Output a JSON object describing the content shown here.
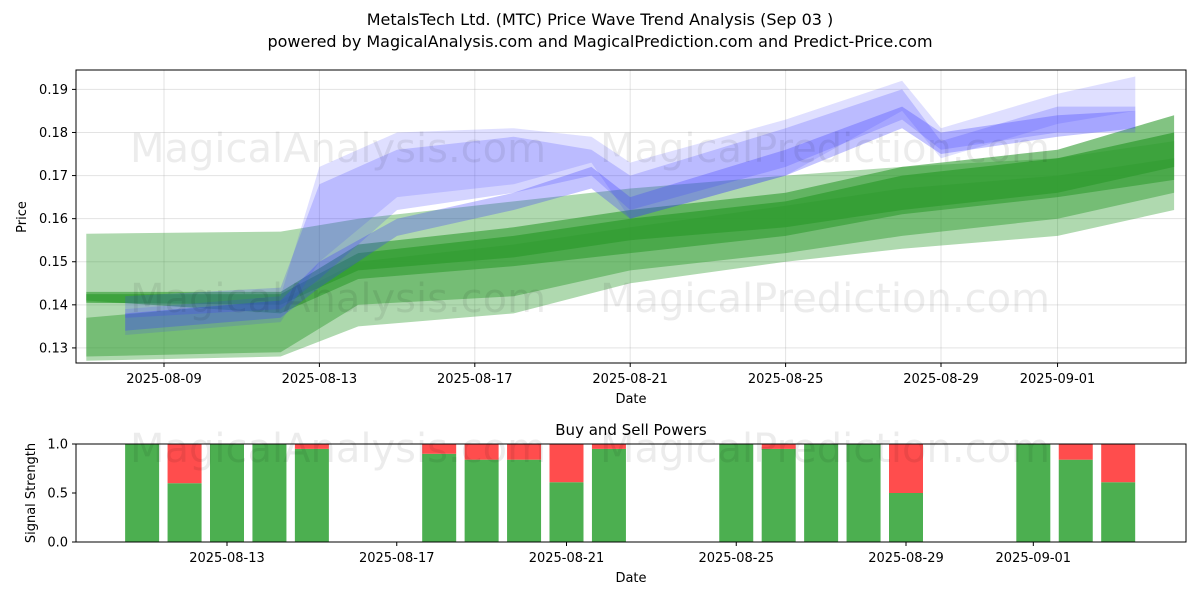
{
  "title_line1": "MetalsTech Ltd. (MTC) Price Wave Trend Analysis (Sep 03 )",
  "title_line2": "powered by MagicalAnalysis.com and MagicalPrediction.com and Predict-Price.com",
  "watermarks": [
    "MagicalAnalysis.com",
    "MagicalPrediction.com",
    "MagicalAnalysis.com",
    "MagicalPrediction.com",
    "MagicalAnalysis.com",
    "MagicalPrediction.com"
  ],
  "colors": {
    "green": "#4caf50",
    "red": "#ff4d4d",
    "blue": "#3a3aff",
    "band": "#2e9b2e"
  },
  "chart_data": [
    {
      "type": "area",
      "title": "",
      "xlabel": "Date",
      "ylabel": "Price",
      "x_ticks": [
        "2025-08-09",
        "2025-08-13",
        "2025-08-17",
        "2025-08-21",
        "2025-08-25",
        "2025-08-29",
        "2025-09-01"
      ],
      "y_ticks": [
        "0.13",
        "0.14",
        "0.15",
        "0.16",
        "0.17",
        "0.18",
        "0.19"
      ],
      "ylim": [
        0.1265,
        0.1945
      ],
      "green_bands": [
        {
          "dates": [
            "2025-08-07",
            "2025-08-12",
            "2025-08-14",
            "2025-08-18",
            "2025-08-21",
            "2025-08-25",
            "2025-08-28",
            "2025-09-01",
            "2025-09-04"
          ],
          "upper": [
            0.1565,
            0.157,
            0.16,
            0.164,
            0.167,
            0.17,
            0.172,
            0.174,
            0.178
          ],
          "lower": [
            0.127,
            0.128,
            0.135,
            0.138,
            0.145,
            0.15,
            0.153,
            0.156,
            0.162
          ]
        },
        {
          "dates": [
            "2025-08-07",
            "2025-08-12",
            "2025-08-14",
            "2025-08-18",
            "2025-08-21",
            "2025-08-25",
            "2025-08-28",
            "2025-09-01",
            "2025-09-04"
          ],
          "upper": [
            0.137,
            0.141,
            0.15,
            0.154,
            0.158,
            0.163,
            0.167,
            0.17,
            0.174
          ],
          "lower": [
            0.128,
            0.129,
            0.14,
            0.142,
            0.148,
            0.152,
            0.156,
            0.16,
            0.166
          ]
        },
        {
          "dates": [
            "2025-08-07",
            "2025-08-12",
            "2025-08-14",
            "2025-08-18",
            "2025-08-21",
            "2025-08-25",
            "2025-08-28",
            "2025-09-01",
            "2025-09-04"
          ],
          "upper": [
            0.143,
            0.143,
            0.154,
            0.158,
            0.162,
            0.166,
            0.172,
            0.176,
            0.184
          ],
          "lower": [
            0.141,
            0.138,
            0.146,
            0.149,
            0.152,
            0.156,
            0.161,
            0.165,
            0.169
          ]
        },
        {
          "dates": [
            "2025-08-07",
            "2025-08-12",
            "2025-08-14",
            "2025-08-18",
            "2025-08-21",
            "2025-08-25",
            "2025-08-28",
            "2025-09-01",
            "2025-09-04"
          ],
          "upper": [
            0.1425,
            0.1425,
            0.152,
            0.156,
            0.16,
            0.164,
            0.17,
            0.174,
            0.18
          ],
          "lower": [
            0.1405,
            0.14,
            0.148,
            0.151,
            0.155,
            0.158,
            0.162,
            0.166,
            0.172
          ]
        }
      ],
      "blue_bands": [
        {
          "dates": [
            "2025-08-08",
            "2025-08-12",
            "2025-08-13",
            "2025-08-15",
            "2025-08-18",
            "2025-08-20",
            "2025-08-21",
            "2025-08-25",
            "2025-08-28",
            "2025-08-29",
            "2025-09-01",
            "2025-09-03"
          ],
          "upper": [
            0.139,
            0.142,
            0.172,
            0.18,
            0.181,
            0.179,
            0.173,
            0.183,
            0.192,
            0.181,
            0.189,
            0.193
          ],
          "lower": [
            0.133,
            0.136,
            0.15,
            0.165,
            0.168,
            0.173,
            0.16,
            0.17,
            0.185,
            0.174,
            0.182,
            0.185
          ]
        },
        {
          "dates": [
            "2025-08-08",
            "2025-08-12",
            "2025-08-13",
            "2025-08-15",
            "2025-08-18",
            "2025-08-20",
            "2025-08-21",
            "2025-08-25",
            "2025-08-28",
            "2025-08-29",
            "2025-09-01",
            "2025-09-03"
          ],
          "upper": [
            0.142,
            0.144,
            0.168,
            0.176,
            0.179,
            0.176,
            0.17,
            0.181,
            0.19,
            0.178,
            0.186,
            0.186
          ],
          "lower": [
            0.137,
            0.139,
            0.146,
            0.162,
            0.166,
            0.17,
            0.162,
            0.172,
            0.183,
            0.176,
            0.18,
            0.18
          ]
        },
        {
          "dates": [
            "2025-08-08",
            "2025-08-12",
            "2025-08-13",
            "2025-08-15",
            "2025-08-18",
            "2025-08-20",
            "2025-08-21",
            "2025-08-25",
            "2025-08-28",
            "2025-08-29",
            "2025-09-01",
            "2025-09-03"
          ],
          "upper": [
            0.138,
            0.141,
            0.15,
            0.16,
            0.166,
            0.172,
            0.165,
            0.176,
            0.186,
            0.18,
            0.184,
            0.185
          ],
          "lower": [
            0.134,
            0.137,
            0.144,
            0.156,
            0.162,
            0.167,
            0.16,
            0.17,
            0.181,
            0.175,
            0.179,
            0.181
          ]
        }
      ]
    },
    {
      "type": "bar",
      "title": "Buy and Sell Powers",
      "xlabel": "Date",
      "ylabel": "Signal Strength",
      "ylim": [
        0,
        1.0
      ],
      "y_ticks": [
        "0.0",
        "0.5",
        "1.0"
      ],
      "x_ticks": [
        "2025-08-13",
        "2025-08-17",
        "2025-08-21",
        "2025-08-25",
        "2025-08-29",
        "2025-09-01"
      ],
      "categories": [
        "2025-08-11",
        "2025-08-12",
        "2025-08-13",
        "2025-08-14",
        "2025-08-15",
        "2025-08-18",
        "2025-08-19",
        "2025-08-20",
        "2025-08-21",
        "2025-08-22",
        "2025-08-25",
        "2025-08-26",
        "2025-08-27",
        "2025-08-28",
        "2025-08-29",
        "2025-09-01",
        "2025-09-02",
        "2025-09-03"
      ],
      "series": [
        {
          "name": "Buy",
          "values": [
            1.0,
            0.6,
            1.0,
            1.0,
            0.95,
            0.9,
            0.84,
            0.84,
            0.61,
            0.95,
            1.0,
            0.95,
            1.0,
            1.0,
            0.5,
            1.0,
            0.84,
            0.61
          ]
        },
        {
          "name": "Sell",
          "values": [
            0.0,
            0.4,
            0.0,
            0.0,
            0.05,
            0.1,
            0.16,
            0.16,
            0.39,
            0.05,
            0.0,
            0.05,
            0.0,
            0.0,
            0.5,
            0.0,
            0.16,
            0.39
          ]
        }
      ]
    }
  ]
}
